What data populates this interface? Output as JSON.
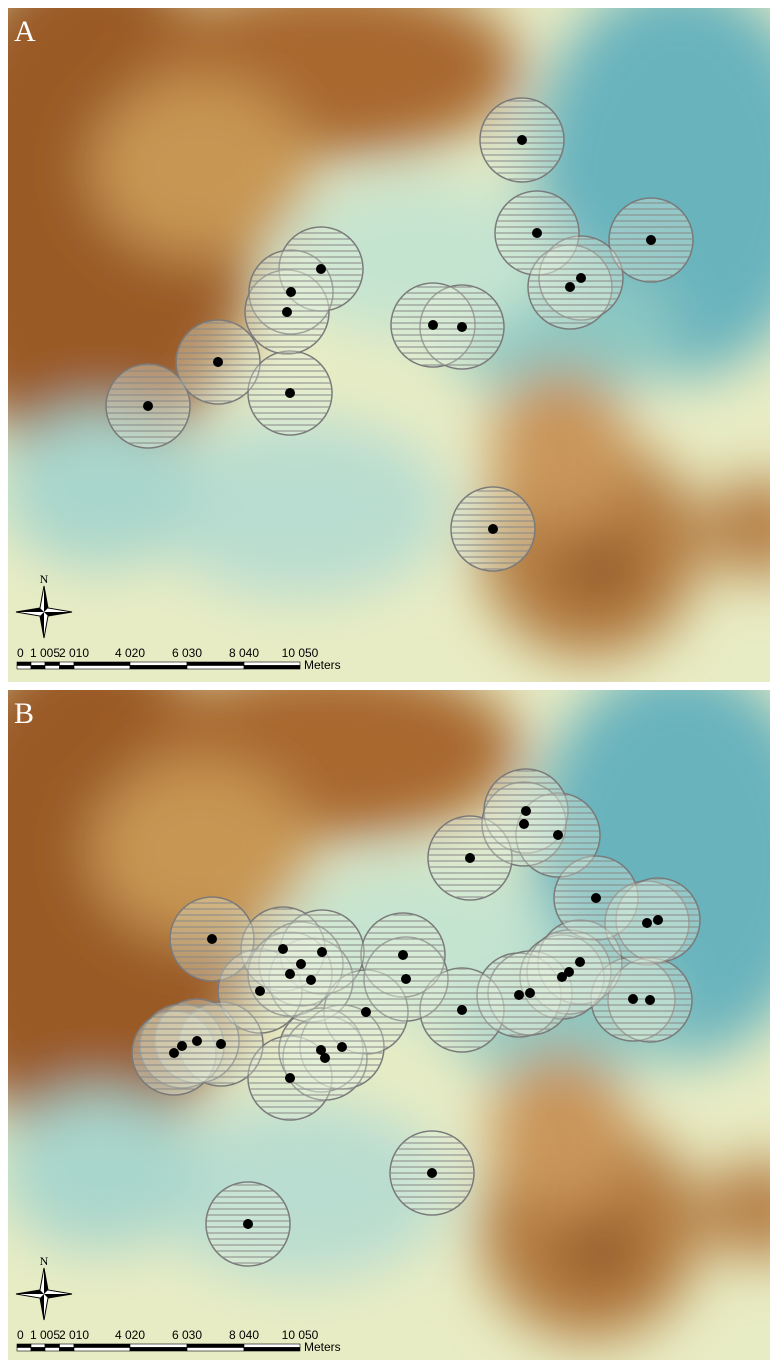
{
  "panels": [
    {
      "label": "A",
      "north": "N",
      "scale": {
        "ticks": [
          "0",
          "1 005",
          "2 010",
          "4 020",
          "6 030",
          "8 040",
          "10 050"
        ],
        "unit": "Meters"
      }
    },
    {
      "label": "B",
      "north": "N",
      "scale": {
        "ticks": [
          "0",
          "1 005",
          "2 010",
          "4 020",
          "6 030",
          "8 040",
          "10 050"
        ],
        "unit": "Meters"
      }
    }
  ]
}
